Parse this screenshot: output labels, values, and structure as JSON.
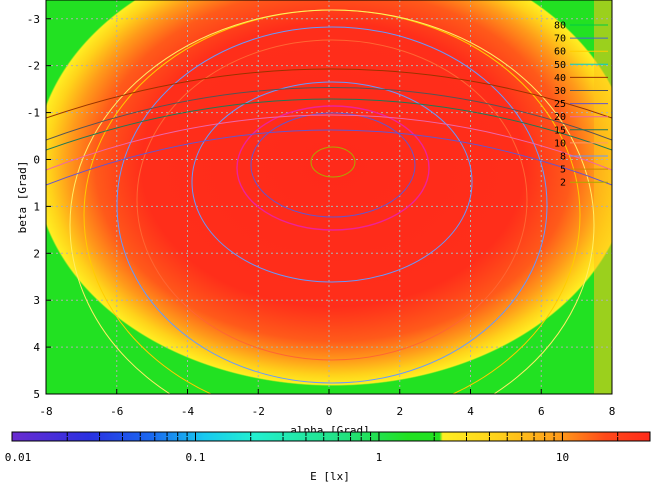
{
  "chart_data": {
    "type": "heatmap",
    "title": "",
    "xlabel": "alpha [Grad]",
    "ylabel": "beta [Grad]",
    "xlim": [
      -8,
      8
    ],
    "ylim": [
      -3.4,
      5
    ],
    "y_inverted": true,
    "grid": true,
    "x_ticks": [
      -8,
      -6,
      -4,
      -2,
      0,
      2,
      4,
      6,
      8
    ],
    "y_ticks": [
      -3,
      -2,
      -1,
      0,
      1,
      2,
      3,
      4,
      5
    ],
    "colorbar": {
      "label": "E [lx]",
      "scale": "log",
      "range": [
        0.01,
        30
      ],
      "ticks": [
        {
          "value": 0.01,
          "label": "0.01"
        },
        {
          "value": 0.1,
          "label": "0.1"
        },
        {
          "value": 1,
          "label": "1"
        },
        {
          "value": 10,
          "label": "10"
        }
      ]
    },
    "contour_levels": [
      {
        "label": "80",
        "value": 80,
        "color": "#00cc44"
      },
      {
        "label": "70",
        "value": 70,
        "color": "#4466cc"
      },
      {
        "label": "60",
        "value": 60,
        "color": "#ffcc00"
      },
      {
        "label": "50",
        "value": 50,
        "color": "#00cccc"
      },
      {
        "label": "40",
        "value": 40,
        "color": "#993300"
      },
      {
        "label": "30",
        "value": 30,
        "color": "#555555"
      },
      {
        "label": "25",
        "value": 25,
        "color": "#6655cc"
      },
      {
        "label": "20",
        "value": 20,
        "color": "#ee66aa"
      },
      {
        "label": "15",
        "value": 15,
        "color": "#227755"
      },
      {
        "label": "10",
        "value": 10,
        "color": "#ff9966"
      },
      {
        "label": "8",
        "value": 8,
        "color": "#6699ff"
      },
      {
        "label": "5",
        "value": 5,
        "color": "#cc8800"
      },
      {
        "label": "2",
        "value": 2,
        "color": "#aaaa00"
      }
    ],
    "colors": {
      "high": "#ff2a1a",
      "mid": "#ffe21a",
      "low": "#22e122",
      "grid": "#b0b0b0"
    }
  }
}
